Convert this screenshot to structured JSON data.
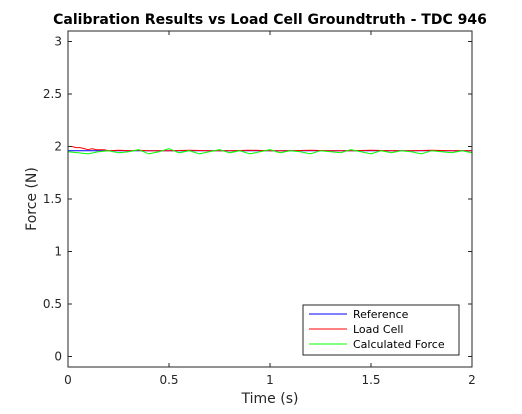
{
  "chart_data": {
    "type": "line",
    "title": "Calibration Results vs Load Cell Groundtruth - TDC 946",
    "xlabel": "Time (s)",
    "ylabel": "Force (N)",
    "xlim": [
      0,
      2
    ],
    "ylim": [
      -0.1,
      3.1
    ],
    "xticks": [
      0,
      0.5,
      1,
      1.5,
      2
    ],
    "xtick_labels": [
      "0",
      "0.5",
      "1",
      "1.5",
      "2"
    ],
    "yticks": [
      0,
      0.5,
      1,
      1.5,
      2,
      2.5,
      3
    ],
    "ytick_labels": [
      "0",
      "0.5",
      "1",
      "1.5",
      "2",
      "2.5",
      "3"
    ],
    "grid": false,
    "legend_position": "bottom-right",
    "series": [
      {
        "name": "Reference",
        "color": "#0000ff",
        "x": [
          0,
          0.1,
          0.2,
          0.3,
          0.4,
          0.5,
          0.6,
          0.7,
          0.8,
          0.9,
          1.0,
          1.1,
          1.2,
          1.3,
          1.4,
          1.5,
          1.6,
          1.7,
          1.8,
          1.9,
          2.0
        ],
        "y": [
          1.96,
          1.96,
          1.96,
          1.96,
          1.96,
          1.96,
          1.96,
          1.96,
          1.96,
          1.96,
          1.96,
          1.96,
          1.96,
          1.96,
          1.96,
          1.96,
          1.96,
          1.96,
          1.96,
          1.96,
          1.96
        ]
      },
      {
        "name": "Load Cell",
        "color": "#ff0000",
        "x": [
          0,
          0.02,
          0.04,
          0.06,
          0.08,
          0.1,
          0.12,
          0.14,
          0.16,
          0.18,
          0.2,
          0.25,
          0.3,
          0.35,
          0.4,
          0.5,
          0.6,
          0.7,
          0.8,
          0.9,
          1.0,
          1.1,
          1.2,
          1.3,
          1.4,
          1.5,
          1.6,
          1.7,
          1.8,
          1.9,
          2.0
        ],
        "y": [
          2.0,
          2.0,
          1.99,
          1.99,
          1.98,
          1.97,
          1.98,
          1.97,
          1.97,
          1.97,
          1.96,
          1.965,
          1.96,
          1.965,
          1.96,
          1.96,
          1.965,
          1.96,
          1.96,
          1.965,
          1.96,
          1.96,
          1.965,
          1.96,
          1.96,
          1.965,
          1.96,
          1.96,
          1.965,
          1.96,
          1.96
        ]
      },
      {
        "name": "Calculated Force",
        "color": "#00ff00",
        "x": [
          0,
          0.05,
          0.1,
          0.15,
          0.2,
          0.25,
          0.3,
          0.35,
          0.4,
          0.45,
          0.5,
          0.55,
          0.6,
          0.65,
          0.7,
          0.75,
          0.8,
          0.85,
          0.9,
          0.95,
          1.0,
          1.05,
          1.1,
          1.15,
          1.2,
          1.25,
          1.3,
          1.35,
          1.4,
          1.45,
          1.5,
          1.55,
          1.6,
          1.65,
          1.7,
          1.75,
          1.8,
          1.85,
          1.9,
          1.95,
          2.0
        ],
        "y": [
          1.95,
          1.94,
          1.93,
          1.95,
          1.96,
          1.94,
          1.95,
          1.97,
          1.93,
          1.95,
          1.98,
          1.94,
          1.96,
          1.93,
          1.95,
          1.97,
          1.94,
          1.96,
          1.93,
          1.95,
          1.97,
          1.94,
          1.96,
          1.95,
          1.93,
          1.96,
          1.95,
          1.94,
          1.97,
          1.95,
          1.93,
          1.96,
          1.94,
          1.96,
          1.95,
          1.93,
          1.96,
          1.95,
          1.94,
          1.96,
          1.94
        ]
      }
    ]
  }
}
